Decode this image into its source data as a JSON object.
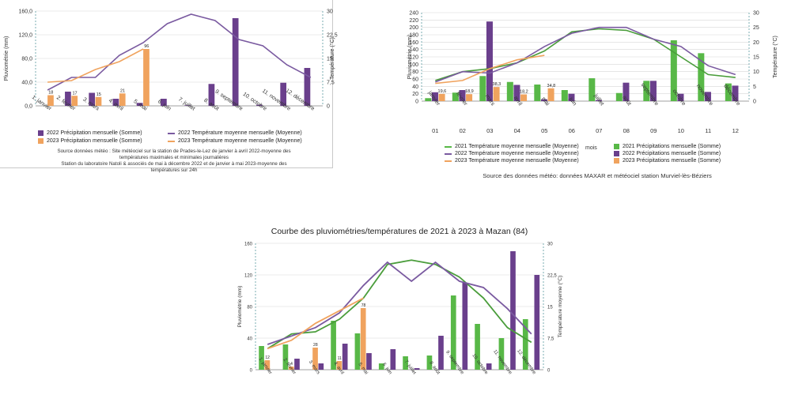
{
  "colors": {
    "purple": "#6a3f8c",
    "orange": "#f0a35e",
    "green": "#58b847",
    "green_line": "#4a9d3b",
    "line2022": "#7a5aa0",
    "line2023": "#f0a35e",
    "grid": "#d7d7d7",
    "dashed_axis": "#5a9aa0"
  },
  "panel1": {
    "title": "",
    "ylabel": "Pluviométrie (mm)",
    "y2label": "Température (°C)",
    "y_ticks": [
      "0,0",
      "40,0",
      "80,0",
      "120,0",
      "160,0"
    ],
    "y2_ticks": [
      "0",
      "7,5",
      "15",
      "22,5",
      "30"
    ],
    "legend": [
      {
        "type": "box",
        "color": "#6a3f8c",
        "label": "2022 Précipitation mensuelle (Somme)"
      },
      {
        "type": "box",
        "color": "#f0a35e",
        "label": "2023 Précipitation mensuelle (Somme)"
      },
      {
        "type": "line",
        "color": "#7a5aa0",
        "label": "2022 Température moyenne mensuelle (Moyenne)"
      },
      {
        "type": "line",
        "color": "#f0a35e",
        "label": "2023 Température moyenne mensuelle (Moyenne)"
      }
    ],
    "source": [
      "Source données météo : Site météociel sur la station de Prades-le-Lez de janvier à avril 2022-moyenne des",
      "températures maximales et minimales journalières",
      "Station du laboratoire Natoli & associés  de mai à décembre 2022 et de janvier à mai 2023-moyenne des",
      "températures sur 24h"
    ]
  },
  "panel2": {
    "title": "",
    "ylabel": "Pluviométrie (mm)",
    "y2label": "Température (°C)",
    "xlabel": "mois",
    "y_ticks": [
      "0",
      "20",
      "40",
      "60",
      "80",
      "100",
      "120",
      "140",
      "160",
      "180",
      "200",
      "220",
      "240"
    ],
    "y2_ticks": [
      "0",
      "5",
      "10",
      "15",
      "20",
      "25",
      "30"
    ],
    "legend": [
      {
        "type": "line",
        "color": "#58b847",
        "label": "2021 Température moyenne mensuelle (Moyenne)"
      },
      {
        "type": "line",
        "color": "#7a5aa0",
        "label": "2022 Température moyenne mensuelle (Moyenne)"
      },
      {
        "type": "line",
        "color": "#f0a35e",
        "label": "2023 Température moyenne mensuelle (Moyenne)"
      },
      {
        "type": "box",
        "color": "#58b847",
        "label": "2021 Précipitations mensuelle (Somme)"
      },
      {
        "type": "box",
        "color": "#6a3f8c",
        "label": "2022 Précipitations mensuelle (Somme)"
      },
      {
        "type": "box",
        "color": "#f0a35e",
        "label": "2023 Précipitations mensuelle (Somme)"
      }
    ],
    "source": "Source des données météo: données MAXAR et météociel station Murviel-lès-Béziers"
  },
  "panel3": {
    "title": "Courbe des pluviométries/températures de 2021 à 2023 à Mazan (84)",
    "ylabel": "Pluviométrie (mm)",
    "y2label": "Température moyenne (°C)",
    "y_ticks": [
      "0",
      "40",
      "80",
      "120",
      "160"
    ],
    "y2_ticks": [
      "0",
      "7,5",
      "15",
      "22,5",
      "30"
    ]
  },
  "chart_data": [
    {
      "type": "bar",
      "categories": [
        "1. janvier",
        "2. février",
        "3. mars",
        "4. avril",
        "5. mai",
        "6. juin",
        "7. juillet",
        "8. août",
        "9. septembre",
        "10. octobre",
        "11. novembre",
        "12. décembre"
      ],
      "ylabel": "Pluviométrie (mm)",
      "ylim": [
        0,
        160
      ],
      "y2label": "Température (°C)",
      "y2lim": [
        0,
        30
      ],
      "series": [
        {
          "name": "2022 Précipitation mensuelle (Somme)",
          "kind": "bar",
          "values": [
            null,
            24,
            22,
            12,
            5,
            12,
            1,
            37,
            148,
            2,
            39,
            64
          ]
        },
        {
          "name": "2023 Précipitation mensuelle (Somme)",
          "kind": "bar",
          "values": [
            18,
            17,
            15,
            21,
            96,
            null,
            null,
            null,
            null,
            null,
            null,
            null
          ],
          "labels": [
            "18",
            "17",
            "15",
            "21",
            "96",
            "",
            "",
            "",
            "",
            "",
            "",
            ""
          ]
        },
        {
          "name": "2022 Température moyenne mensuelle (Moyenne)",
          "kind": "line",
          "axis": "y2",
          "values": [
            5,
            9,
            9,
            16,
            20,
            26,
            29,
            27,
            21,
            19,
            13,
            9
          ]
        },
        {
          "name": "2023 Température moyenne mensuelle (Moyenne)",
          "kind": "line",
          "axis": "y2",
          "values": [
            7.5,
            8,
            11.5,
            14,
            18,
            null,
            null,
            null,
            null,
            null,
            null,
            null
          ]
        }
      ]
    },
    {
      "type": "bar",
      "categories": [
        "janvier",
        "février",
        "mars",
        "avril",
        "mai",
        "juin",
        "juillet",
        "août",
        "septembre",
        "octobre",
        "novembre",
        "décembre"
      ],
      "x_numbers": [
        "01",
        "02",
        "03",
        "04",
        "05",
        "06",
        "07",
        "08",
        "09",
        "10",
        "11",
        "12"
      ],
      "xlabel": "mois",
      "ylabel": "Pluviométrie (mm)",
      "ylim": [
        0,
        240
      ],
      "y2label": "Température (°C)",
      "y2lim": [
        0,
        30
      ],
      "series": [
        {
          "name": "2021 Précipitations mensuelle (Somme)",
          "kind": "bar",
          "values": [
            8,
            23,
            68,
            52,
            45,
            30,
            62,
            22,
            55,
            165,
            130,
            48
          ]
        },
        {
          "name": "2022 Précipitations mensuelle (Somme)",
          "kind": "bar",
          "values": [
            24,
            30,
            216,
            44,
            5,
            20,
            3,
            50,
            55,
            20,
            25,
            42
          ]
        },
        {
          "name": "2023 Précipitations mensuelle (Somme)",
          "kind": "bar",
          "values": [
            19.6,
            18.9,
            38.3,
            18.2,
            34.8,
            null,
            null,
            null,
            null,
            null,
            null,
            null
          ],
          "labels": [
            "19,6",
            "18,9",
            "38,3",
            "18,2",
            "34,8",
            "",
            "",
            "",
            "",
            "",
            "",
            ""
          ]
        },
        {
          "name": "2021 Température moyenne mensuelle (Moyenne)",
          "kind": "line",
          "axis": "y2",
          "values": [
            7,
            10,
            11,
            13,
            17,
            23.5,
            24.5,
            24,
            21,
            15,
            9,
            8
          ]
        },
        {
          "name": "2022 Température moyenne mensuelle (Moyenne)",
          "kind": "line",
          "axis": "y2",
          "values": [
            6.5,
            10,
            9.5,
            13,
            18.5,
            23,
            25,
            25,
            21,
            18.5,
            12,
            9
          ]
        },
        {
          "name": "2023 Température moyenne mensuelle (Moyenne)",
          "kind": "line",
          "axis": "y2",
          "values": [
            6,
            7,
            11,
            14,
            15.5,
            null,
            null,
            null,
            null,
            null,
            null,
            null
          ]
        }
      ]
    },
    {
      "type": "bar",
      "title": "Courbe des pluviométries/températures de 2021 à 2023 à Mazan (84)",
      "categories": [
        "1. janvier",
        "2. février",
        "3. mars",
        "4. avril",
        "5. mai",
        "6. juin",
        "7. juillet",
        "8. août",
        "9. septembre",
        "10. octobre",
        "11. novembre",
        "12. décembre"
      ],
      "ylabel": "Pluviométrie (mm)",
      "ylim": [
        0,
        160
      ],
      "y2label": "Température moyenne (°C)",
      "y2lim": [
        0,
        30
      ],
      "series": [
        {
          "name": "2021",
          "kind": "bar",
          "values": [
            30,
            32,
            null,
            62,
            46,
            8,
            17,
            18,
            94,
            58,
            40,
            64
          ]
        },
        {
          "name": "2023",
          "kind": "bar",
          "values": [
            12,
            4,
            28,
            11,
            78,
            null,
            null,
            null,
            null,
            null,
            null,
            null
          ],
          "labels": [
            "12",
            "4",
            "28",
            "11",
            "78",
            "",
            "",
            "",
            "",
            "",
            "",
            ""
          ]
        },
        {
          "name": "2022",
          "kind": "bar",
          "values": [
            null,
            14,
            8,
            33,
            21,
            26,
            2,
            43,
            110,
            8,
            150,
            120
          ]
        },
        {
          "name": "2021",
          "kind": "line",
          "axis": "y2",
          "values": [
            5,
            8.5,
            9,
            12,
            17,
            25,
            26,
            25,
            22,
            17,
            10,
            6.5
          ]
        },
        {
          "name": "2022",
          "kind": "line",
          "axis": "y2",
          "values": [
            6,
            8,
            10,
            13.5,
            20,
            25.5,
            21,
            25.5,
            21,
            19.5,
            14.5,
            8.5
          ]
        },
        {
          "name": "2023",
          "kind": "line",
          "axis": "y2",
          "values": [
            5,
            7,
            11,
            14,
            17,
            null,
            null,
            null,
            null,
            null,
            null,
            null
          ]
        }
      ]
    }
  ]
}
